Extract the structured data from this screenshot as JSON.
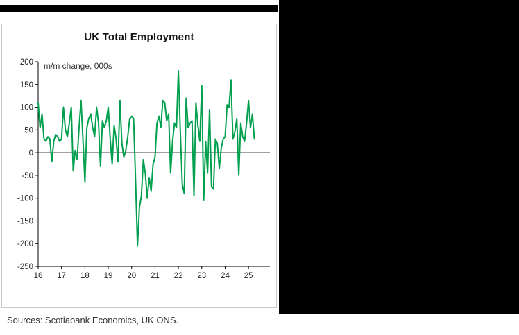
{
  "chart": {
    "title": "UK Total Employment",
    "unit_label": "m/m change, 000s",
    "source": "Sources: Scotiabank Economics, UK ONS.",
    "line_color": "#00A04E",
    "axis_color": "#000000"
  },
  "chart_data": {
    "type": "line",
    "title": "UK Total Employment",
    "ylabel": "m/m change, 000s",
    "source": "Sources: Scotiabank Economics, UK ONS.",
    "frequency": "monthly",
    "x_start": "2016-01",
    "x_tick_labels": [
      "16",
      "17",
      "18",
      "19",
      "20",
      "21",
      "22",
      "23",
      "24",
      "25"
    ],
    "ylim": [
      -250,
      200
    ],
    "y_ticks": [
      200,
      150,
      100,
      50,
      0,
      -50,
      -100,
      -150,
      -200,
      -250
    ],
    "grid": false,
    "legend": "none",
    "series": [
      {
        "name": "UK total employment, m/m change, 000s",
        "values": [
          110,
          55,
          85,
          30,
          25,
          35,
          30,
          -20,
          25,
          40,
          35,
          25,
          30,
          100,
          50,
          35,
          65,
          100,
          -40,
          5,
          -15,
          55,
          115,
          30,
          -65,
          55,
          75,
          85,
          55,
          35,
          100,
          65,
          -30,
          70,
          55,
          70,
          100,
          30,
          -25,
          60,
          30,
          -20,
          115,
          20,
          -10,
          5,
          35,
          75,
          80,
          75,
          -60,
          -205,
          -120,
          -95,
          -15,
          -45,
          -100,
          -55,
          -85,
          -25,
          -10,
          65,
          80,
          55,
          115,
          110,
          70,
          85,
          -45,
          25,
          65,
          55,
          180,
          45,
          -70,
          -90,
          120,
          55,
          65,
          70,
          -95,
          110,
          60,
          25,
          148,
          -105,
          25,
          -45,
          95,
          -75,
          -80,
          30,
          20,
          -35,
          10,
          30,
          35,
          105,
          100,
          160,
          30,
          45,
          75,
          -50,
          65,
          35,
          25,
          65,
          115,
          55,
          85,
          30
        ]
      }
    ]
  }
}
